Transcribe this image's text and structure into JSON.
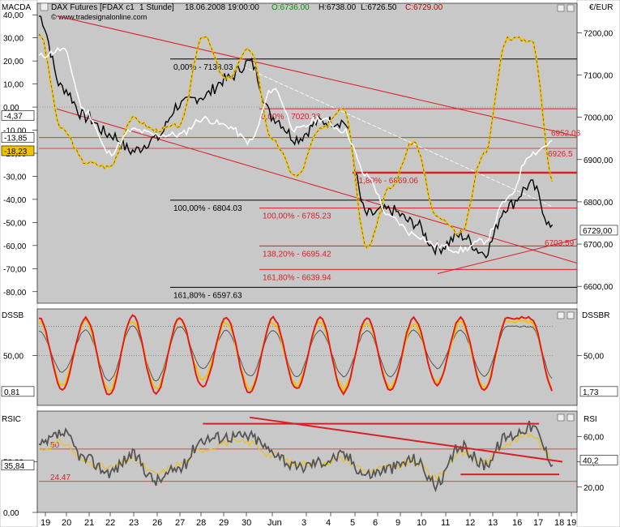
{
  "header": {
    "instrument": "DAX Futures [FDAX c1",
    "interval": "1 Stunde]",
    "datetime": "18.06.2008 19:00:00",
    "open": "O:6736.00",
    "high": "H:6738.00",
    "low": "L:6726.50",
    "close": "C:6729.00",
    "copyright": "© www.tradesignalonline.com"
  },
  "colors": {
    "price": "#000000",
    "macd": "#f2c200",
    "signal": "#ffffff",
    "fib": "#d81f26",
    "channel": "#d81f26",
    "dss_fast": "#e31b1b",
    "dss_slow": "#f2c200",
    "dss_signal": "#555555",
    "rsi": "#555555",
    "rsi_smooth": "#f2c200",
    "panel_bg": "#c8c8c8"
  },
  "main_panel": {
    "left_label": "MACDA",
    "right_label": "€/EUR",
    "left_ticks": [
      "40,00",
      "30,00",
      "20,00",
      "10,00",
      "0,00",
      "-10,00",
      "-20,00",
      "-30,00",
      "-40,00",
      "-50,00",
      "-60,00",
      "-70,00",
      "-80,00"
    ],
    "right_ticks": [
      "7200,00",
      "7100,00",
      "7000,00",
      "6900,00",
      "6800,00",
      "6700,00",
      "6600,00"
    ],
    "left_badges": [
      "-4,37",
      "-13,85",
      "-18,23"
    ],
    "right_badge": "6729,00",
    "fib_labels": {
      "f0": "0,00% - 7138.03",
      "f0b": "0,00% - 7020.33",
      "f618": "61,80% - 6869.06",
      "f100a": "100,00% - 6804.03",
      "f100b": "100,00% - 6785.23",
      "f1382": "138,20% - 6695.42",
      "f1618a": "161,80% - 6639.94",
      "f1618b": "161,80% - 6597.63"
    },
    "level_labels": [
      "6952.06",
      "6926.5",
      "6703.59"
    ]
  },
  "dss_panel": {
    "left_label": "DSSB",
    "right_label": "DSSBR",
    "left_ticks": [
      "50,00"
    ],
    "right_ticks": [
      "50,00"
    ],
    "left_badge": "0,81",
    "right_badge": "1,73"
  },
  "rsi_panel": {
    "left_label": "RSIC",
    "right_label": "RSI",
    "left_ticks": [
      "50,00",
      "0,00"
    ],
    "right_ticks": [
      "60,00",
      "40,00",
      "20,00"
    ],
    "left_badge": "35,84",
    "right_badge": "40,2",
    "level_labels": [
      "50",
      "24.47"
    ]
  },
  "x_axis": {
    "labels": [
      "19",
      "20",
      "21",
      "22",
      "23",
      "26",
      "27",
      "28",
      "29",
      "30",
      "Jun",
      "3",
      "4",
      "5",
      "6",
      "9",
      "10",
      "11",
      "12",
      "13",
      "16",
      "17",
      "18",
      "19"
    ]
  },
  "chart_data": [
    {
      "type": "line",
      "title": "DAX Futures [FDAX c1  1 Stunde]",
      "xlabel": "",
      "ylabel": "€/EUR",
      "ylim": [
        6560,
        7270
      ],
      "x": [
        "19",
        "20",
        "21",
        "22",
        "23",
        "26",
        "27",
        "28",
        "29",
        "30",
        "Jun",
        "3",
        "4",
        "5",
        "6",
        "9",
        "10",
        "11",
        "12",
        "13",
        "16",
        "17",
        "18"
      ],
      "series": [
        {
          "name": "DAX Futures [FDAX c1",
          "values": [
            7240,
            7070,
            7000,
            6960,
            6920,
            6950,
            7030,
            7050,
            7090,
            7130,
            7000,
            6950,
            6990,
            6990,
            6770,
            6780,
            6750,
            6690,
            6720,
            6680,
            6790,
            6840,
            6730
          ]
        },
        {
          "name": "MACDA",
          "axis": "left",
          "ylim": [
            -85,
            45
          ],
          "values": [
            32,
            -10,
            -24,
            -26,
            -5,
            -10,
            -8,
            31,
            12,
            25,
            -15,
            -30,
            -10,
            0,
            -60,
            -35,
            -15,
            -48,
            -55,
            -20,
            30,
            29,
            -33
          ]
        },
        {
          "name": "",
          "axis": "left",
          "ylim": [
            -85,
            45
          ],
          "values": [
            22,
            25,
            -2,
            -20,
            -10,
            -12,
            -12,
            -5,
            -8,
            -15,
            8,
            -10,
            -5,
            -10,
            -30,
            -48,
            -55,
            -60,
            -62,
            -58,
            -40,
            -20,
            -15
          ]
        }
      ],
      "fibonacci": [
        {
          "label": "0,00% - 7138.03",
          "value": 7138.03
        },
        {
          "label": "0,00% - 7020.33",
          "value": 7020.33
        },
        {
          "label": "61,80% - 6869.06",
          "value": 6869.06
        },
        {
          "label": "100,00% - 6804.03",
          "value": 6804.03
        },
        {
          "label": "100,00% - 6785.23",
          "value": 6785.23
        },
        {
          "label": "138,20% - 6695.42",
          "value": 6695.42
        },
        {
          "label": "161,80% - 6639.94",
          "value": 6639.94
        },
        {
          "label": "161,80% - 6597.63",
          "value": 6597.63
        }
      ],
      "levels": [
        6952.06,
        6926.5,
        6703.59
      ],
      "channel": [
        {
          "from": [
            "19",
            7240
          ],
          "to": [
            "19",
            6960
          ]
        },
        {
          "from": [
            "19",
            7020
          ],
          "to": [
            "19",
            6660
          ]
        },
        {
          "from": [
            "11",
            6630
          ],
          "to": [
            "19",
            6710
          ]
        }
      ],
      "grid": false
    },
    {
      "type": "line",
      "title": "DSSB",
      "ylim": [
        0,
        100
      ],
      "y_tick_labels": [
        "50,00"
      ],
      "x": [
        "19",
        "20",
        "21",
        "22",
        "23",
        "26",
        "27",
        "28",
        "29",
        "30",
        "Jun",
        "3",
        "4",
        "5",
        "6",
        "9",
        "10",
        "11",
        "12",
        "13",
        "16",
        "17",
        "18"
      ],
      "series": [
        {
          "name": "",
          "values": [
            95,
            10,
            95,
            3,
            98,
            5,
            95,
            12,
            95,
            5,
            95,
            10,
            95,
            5,
            95,
            8,
            95,
            15,
            95,
            8,
            95,
            95,
            5
          ]
        },
        {
          "name": "",
          "values": [
            90,
            15,
            90,
            8,
            93,
            10,
            92,
            20,
            90,
            10,
            90,
            15,
            90,
            10,
            90,
            12,
            88,
            20,
            90,
            12,
            92,
            90,
            8
          ]
        },
        {
          "name": "",
          "values": [
            80,
            30,
            80,
            20,
            85,
            20,
            85,
            35,
            80,
            25,
            80,
            25,
            80,
            25,
            80,
            25,
            80,
            35,
            80,
            25,
            85,
            85,
            20
          ]
        }
      ],
      "upper_level": 85,
      "lower_level": 5
    },
    {
      "type": "line",
      "title": "RSIC",
      "ylim": [
        0,
        80
      ],
      "y_tick_labels": [
        "50,00",
        "0,00"
      ],
      "right_y_tick_labels": [
        "60,00",
        "40,00",
        "20,00"
      ],
      "x": [
        "19",
        "20",
        "21",
        "22",
        "23",
        "26",
        "27",
        "28",
        "29",
        "30",
        "Jun",
        "3",
        "4",
        "5",
        "6",
        "9",
        "10",
        "11",
        "12",
        "13",
        "16",
        "17",
        "18"
      ],
      "series": [
        {
          "name": "",
          "values": [
            52,
            62,
            42,
            32,
            45,
            25,
            35,
            58,
            60,
            60,
            48,
            35,
            40,
            45,
            30,
            35,
            42,
            22,
            52,
            38,
            60,
            68,
            40
          ]
        },
        {
          "name": "",
          "values": [
            50,
            55,
            40,
            35,
            42,
            30,
            38,
            50,
            55,
            55,
            45,
            38,
            40,
            42,
            33,
            35,
            40,
            28,
            48,
            40,
            55,
            62,
            42
          ]
        }
      ],
      "levels": [
        50,
        24.47
      ],
      "trendlines": [
        "descending resistance from 30 to 18",
        "horizontal resistance 28–17",
        "horizontal support 12–18"
      ]
    }
  ]
}
